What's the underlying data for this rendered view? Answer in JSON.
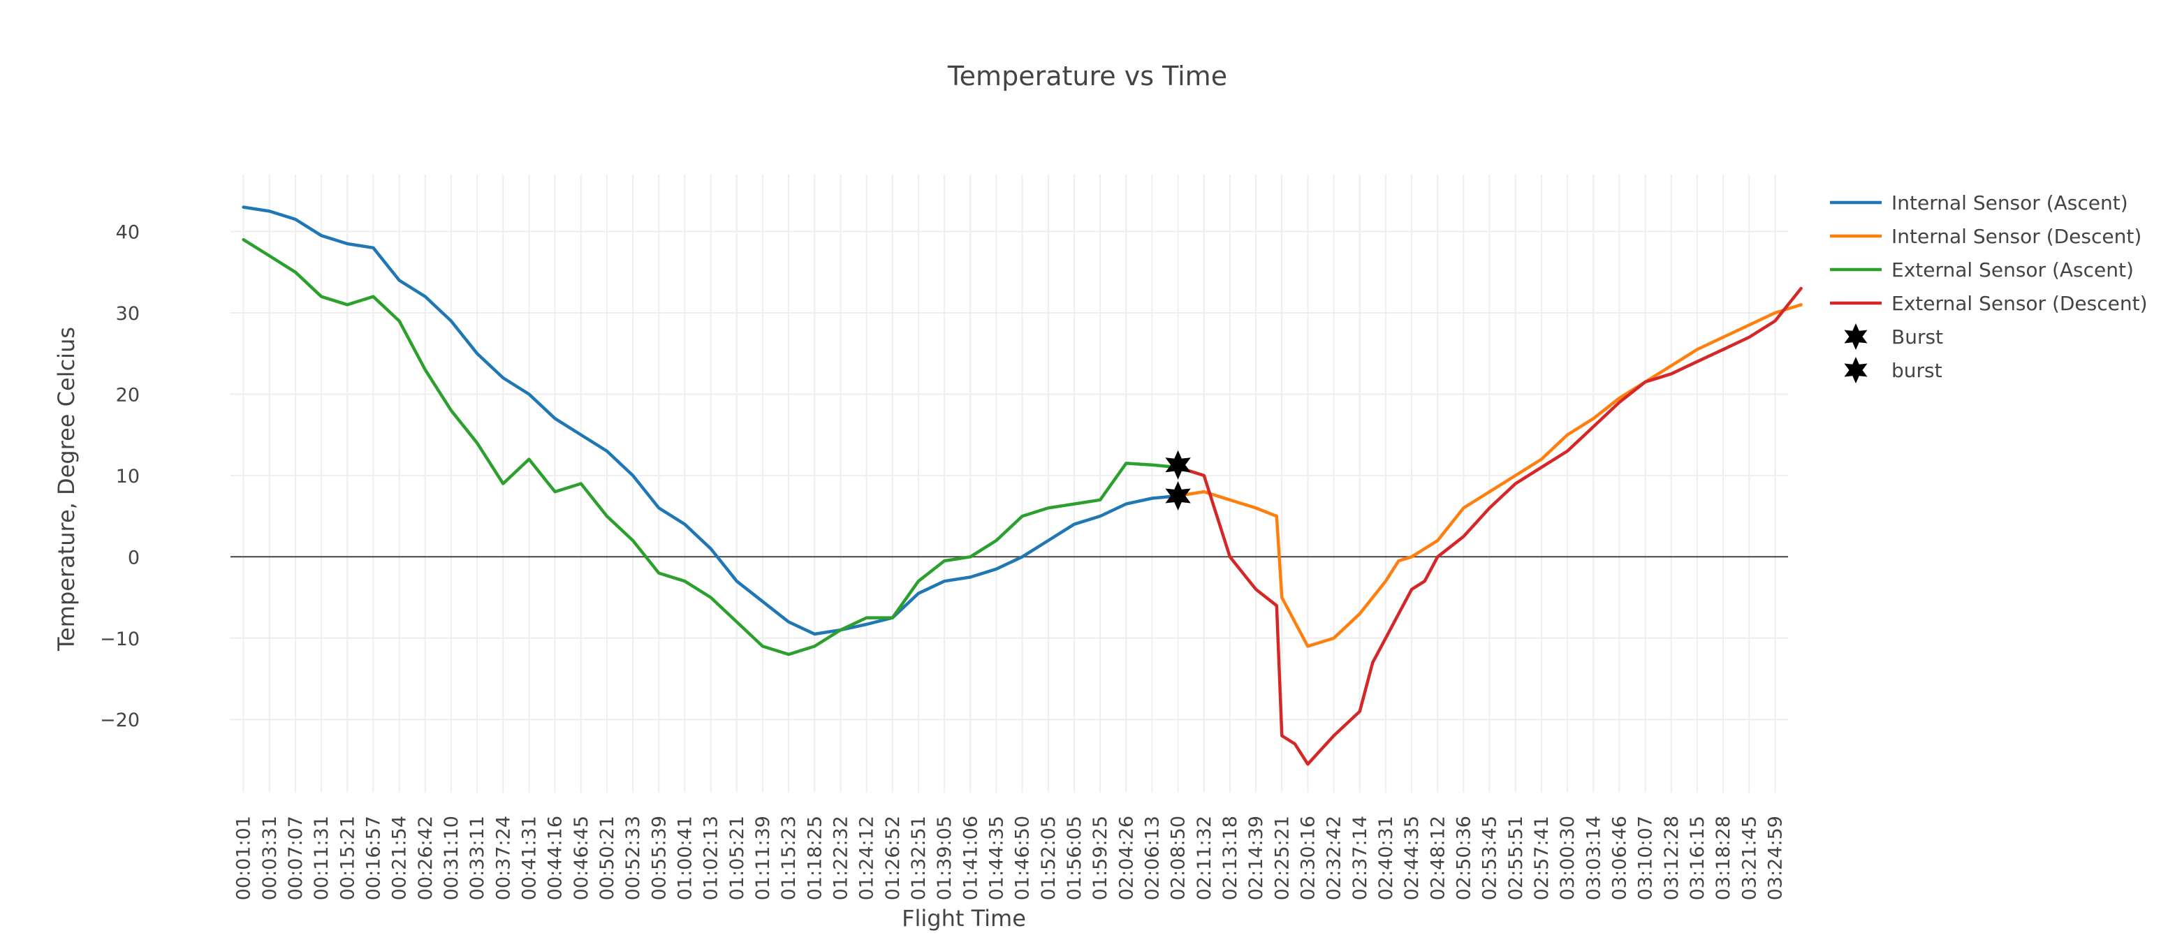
{
  "chart_data": {
    "type": "line",
    "title": "Temperature vs Time",
    "xlabel": "Flight Time",
    "ylabel": "Temperature, Degree Celcius",
    "ylim": [
      -29,
      47
    ],
    "yticks": [
      -20,
      -10,
      0,
      10,
      20,
      30,
      40
    ],
    "grid": true,
    "zero_line": true,
    "legend_position": "top-right",
    "categories": [
      "00:01:01",
      "00:03:31",
      "00:07:07",
      "00:11:31",
      "00:15:21",
      "00:16:57",
      "00:21:54",
      "00:26:42",
      "00:31:10",
      "00:33:11",
      "00:37:24",
      "00:41:31",
      "00:44:16",
      "00:46:45",
      "00:50:21",
      "00:52:33",
      "00:55:39",
      "01:00:41",
      "01:02:13",
      "01:05:21",
      "01:11:39",
      "01:15:23",
      "01:18:25",
      "01:22:32",
      "01:24:12",
      "01:26:52",
      "01:32:51",
      "01:39:05",
      "01:41:06",
      "01:44:35",
      "01:46:50",
      "01:52:05",
      "01:56:05",
      "01:59:25",
      "02:04:26",
      "02:06:13",
      "02:08:50",
      "02:11:32",
      "02:13:18",
      "02:14:39",
      "02:25:21",
      "02:30:16",
      "02:32:42",
      "02:37:14",
      "02:40:31",
      "02:44:35",
      "02:48:12",
      "02:50:36",
      "02:53:45",
      "02:55:51",
      "02:57:41",
      "03:00:30",
      "03:03:14",
      "03:06:46",
      "03:10:07",
      "03:12:28",
      "03:16:15",
      "03:18:28",
      "03:21:45",
      "03:24:59"
    ],
    "series": [
      {
        "name": "Internal Sensor (Ascent)",
        "color": "#1f77b4",
        "x": [
          0,
          1,
          2,
          3,
          4,
          5,
          6,
          7,
          8,
          9,
          10,
          11,
          12,
          13,
          14,
          15,
          16,
          17,
          18,
          19,
          20,
          21,
          22,
          23,
          24,
          25,
          26,
          27,
          28,
          29,
          30,
          31,
          32,
          33,
          34,
          35,
          36
        ],
        "values": [
          43,
          42.5,
          41.5,
          39.5,
          38.5,
          38,
          34,
          32,
          29,
          25,
          22,
          20,
          17,
          15,
          13,
          10,
          6,
          4,
          1,
          -3,
          -5.5,
          -8,
          -9.5,
          -9,
          -8.3,
          -7.5,
          -4.5,
          -3,
          -2.5,
          -1.5,
          0,
          2,
          4,
          5,
          6.5,
          7.2,
          7.5
        ]
      },
      {
        "name": "Internal Sensor (Descent)",
        "color": "#ff7f0e",
        "x": [
          36,
          37,
          38,
          39,
          39.8,
          40,
          40.5,
          41,
          42,
          43,
          44,
          44.5,
          45,
          46,
          47,
          48,
          49,
          50,
          51,
          52,
          53,
          54,
          55,
          56,
          57,
          58,
          59,
          60
        ],
        "values": [
          7.5,
          8,
          7,
          6,
          5,
          -5,
          -8,
          -11,
          -10,
          -7,
          -3,
          -0.5,
          0,
          2,
          6,
          8,
          10,
          12,
          15,
          17,
          19.5,
          21.5,
          23.5,
          25.5,
          27,
          28.5,
          30,
          31
        ]
      },
      {
        "name": "External Sensor (Ascent)",
        "color": "#2ca02c",
        "x": [
          0,
          1,
          2,
          3,
          4,
          5,
          6,
          7,
          8,
          9,
          10,
          11,
          12,
          13,
          14,
          15,
          16,
          17,
          18,
          19,
          20,
          21,
          22,
          23,
          24,
          25,
          26,
          27,
          28,
          29,
          30,
          31,
          32,
          33,
          34,
          35,
          36
        ],
        "values": [
          39,
          37,
          35,
          32,
          31,
          32,
          29,
          23,
          18,
          14,
          9,
          12,
          8,
          9,
          5,
          2,
          -2,
          -3,
          -5,
          -8,
          -11,
          -12,
          -11,
          -9,
          -7.5,
          -7.5,
          -3,
          -0.5,
          0,
          2,
          5,
          6,
          6.5,
          7,
          11.5,
          11.3,
          11
        ]
      },
      {
        "name": "External Sensor (Descent)",
        "color": "#d62728",
        "x": [
          36,
          37,
          38,
          38.5,
          39,
          39.8,
          40,
          40.5,
          41,
          42,
          43,
          43.5,
          44,
          44.5,
          45,
          45.5,
          46,
          47,
          48,
          49,
          50,
          51,
          52,
          53,
          54,
          55,
          56,
          57,
          58,
          59,
          60
        ],
        "values": [
          11,
          10,
          0,
          -2,
          -4,
          -6,
          -22,
          -23,
          -25.5,
          -22,
          -19,
          -13,
          -10,
          -7,
          -4,
          -3,
          0,
          2.5,
          6,
          9,
          11,
          13,
          16,
          19,
          21.5,
          22.5,
          24,
          25.5,
          27,
          29,
          33
        ]
      },
      {
        "name": "Burst",
        "color": "#000000",
        "marker": "hexagram",
        "x": [
          36
        ],
        "values": [
          7.5
        ]
      },
      {
        "name": "burst",
        "color": "#000000",
        "marker": "hexagram",
        "x": [
          36
        ],
        "values": [
          11.3
        ]
      }
    ]
  }
}
